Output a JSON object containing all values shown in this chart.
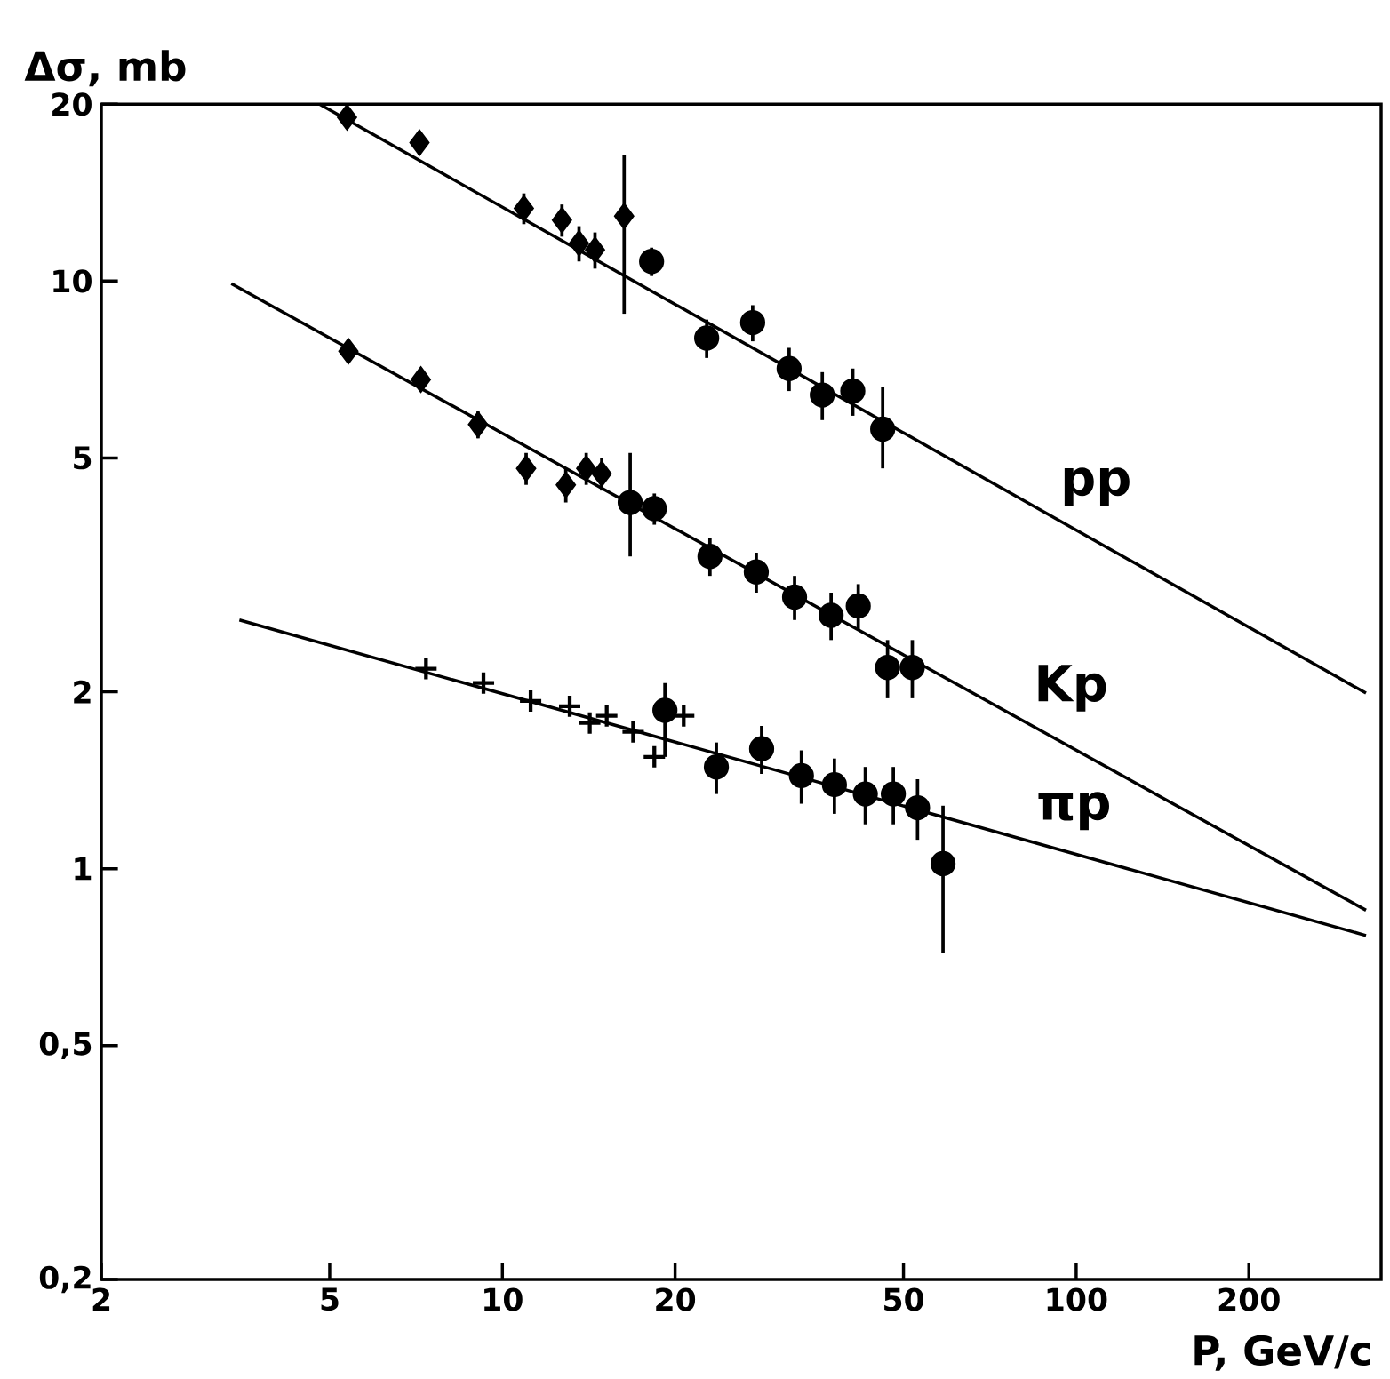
{
  "chart_data": {
    "type": "scatter",
    "xlabel": "P, GeV/c",
    "ylabel": "Δσ, mb",
    "log": "xy",
    "xlim": [
      2,
      340
    ],
    "ylim": [
      0.2,
      20
    ],
    "xticks": [
      2,
      5,
      10,
      20,
      50,
      100,
      200
    ],
    "yticks": [
      {
        "value": 0.2,
        "label": "0,2"
      },
      {
        "value": 0.5,
        "label": "0,5"
      },
      1,
      2,
      5,
      10,
      20
    ],
    "series": [
      {
        "marker": "diamond",
        "color": "#000000",
        "x": [
          5.36,
          7.17,
          10.9,
          12.7,
          13.6,
          14.5,
          16.3
        ],
        "values": [
          19.0,
          17.2,
          13.3,
          12.7,
          11.6,
          11.3,
          12.9
        ],
        "errors": [
          0.8,
          0.8,
          0.8,
          0.8,
          0.8,
          0.8,
          [
            8.8,
            16.4
          ]
        ]
      },
      {
        "marker": "circle",
        "color": "#000000",
        "x": [
          18.2,
          22.7,
          27.3,
          31.6,
          36.1,
          40.8,
          46.0
        ],
        "values": [
          10.8,
          8.0,
          8.5,
          7.1,
          6.4,
          6.5,
          5.6
        ],
        "errors": [
          0.6,
          0.6,
          0.6,
          0.6,
          0.6,
          0.6,
          [
            4.8,
            6.6
          ]
        ]
      },
      {
        "type": "line",
        "name": "pp",
        "color": "#000000",
        "x": [
          4.8,
          320
        ],
        "values": [
          20,
          1.99
        ]
      },
      {
        "marker": "diamond",
        "color": "#000000",
        "x": [
          5.39,
          7.21,
          9.07,
          11.0,
          12.9,
          14.0,
          14.9
        ],
        "values": [
          7.6,
          6.8,
          5.7,
          4.8,
          4.5,
          4.8,
          4.7
        ],
        "errors": [
          0.3,
          0.3,
          0.3,
          0.3,
          0.3,
          0.3,
          0.3
        ]
      },
      {
        "marker": "circle",
        "color": "#000000",
        "x": [
          16.7,
          18.4,
          23.0,
          27.7,
          32.3,
          37.4,
          41.7,
          46.9,
          51.8
        ],
        "values": [
          4.2,
          4.1,
          3.4,
          3.2,
          2.9,
          2.7,
          2.8,
          2.2,
          2.2
        ],
        "errors": [
          [
            3.4,
            5.1
          ],
          0.25,
          0.25,
          0.25,
          0.25,
          0.25,
          0.25,
          0.25,
          0.25
        ]
      },
      {
        "type": "line",
        "name": "Kp",
        "color": "#000000",
        "x": [
          3.37,
          320
        ],
        "values": [
          9.9,
          0.85
        ]
      },
      {
        "marker": "cross",
        "color": "#000000",
        "x": [
          7.36,
          9.27,
          11.2,
          13.1,
          14.2,
          15.2,
          16.9,
          18.4,
          20.7
        ],
        "values": [
          2.19,
          2.07,
          1.93,
          1.89,
          1.77,
          1.82,
          1.71,
          1.55,
          1.82
        ]
      },
      {
        "marker": "circle",
        "color": "#000000",
        "x": [
          19.2,
          23.6,
          28.3,
          33.2,
          37.9,
          42.9,
          48.0,
          52.9,
          58.6
        ],
        "values": [
          1.86,
          1.49,
          1.6,
          1.44,
          1.39,
          1.34,
          1.34,
          1.27,
          1.02
        ],
        "errors": [
          [
            1.55,
            2.07
          ],
          0.15,
          0.15,
          0.15,
          0.15,
          0.15,
          0.15,
          0.15,
          [
            0.72,
            1.28
          ]
        ]
      },
      {
        "type": "line",
        "name": "πp",
        "color": "#000000",
        "x": [
          3.48,
          320
        ],
        "values": [
          2.65,
          0.77
        ]
      }
    ]
  }
}
